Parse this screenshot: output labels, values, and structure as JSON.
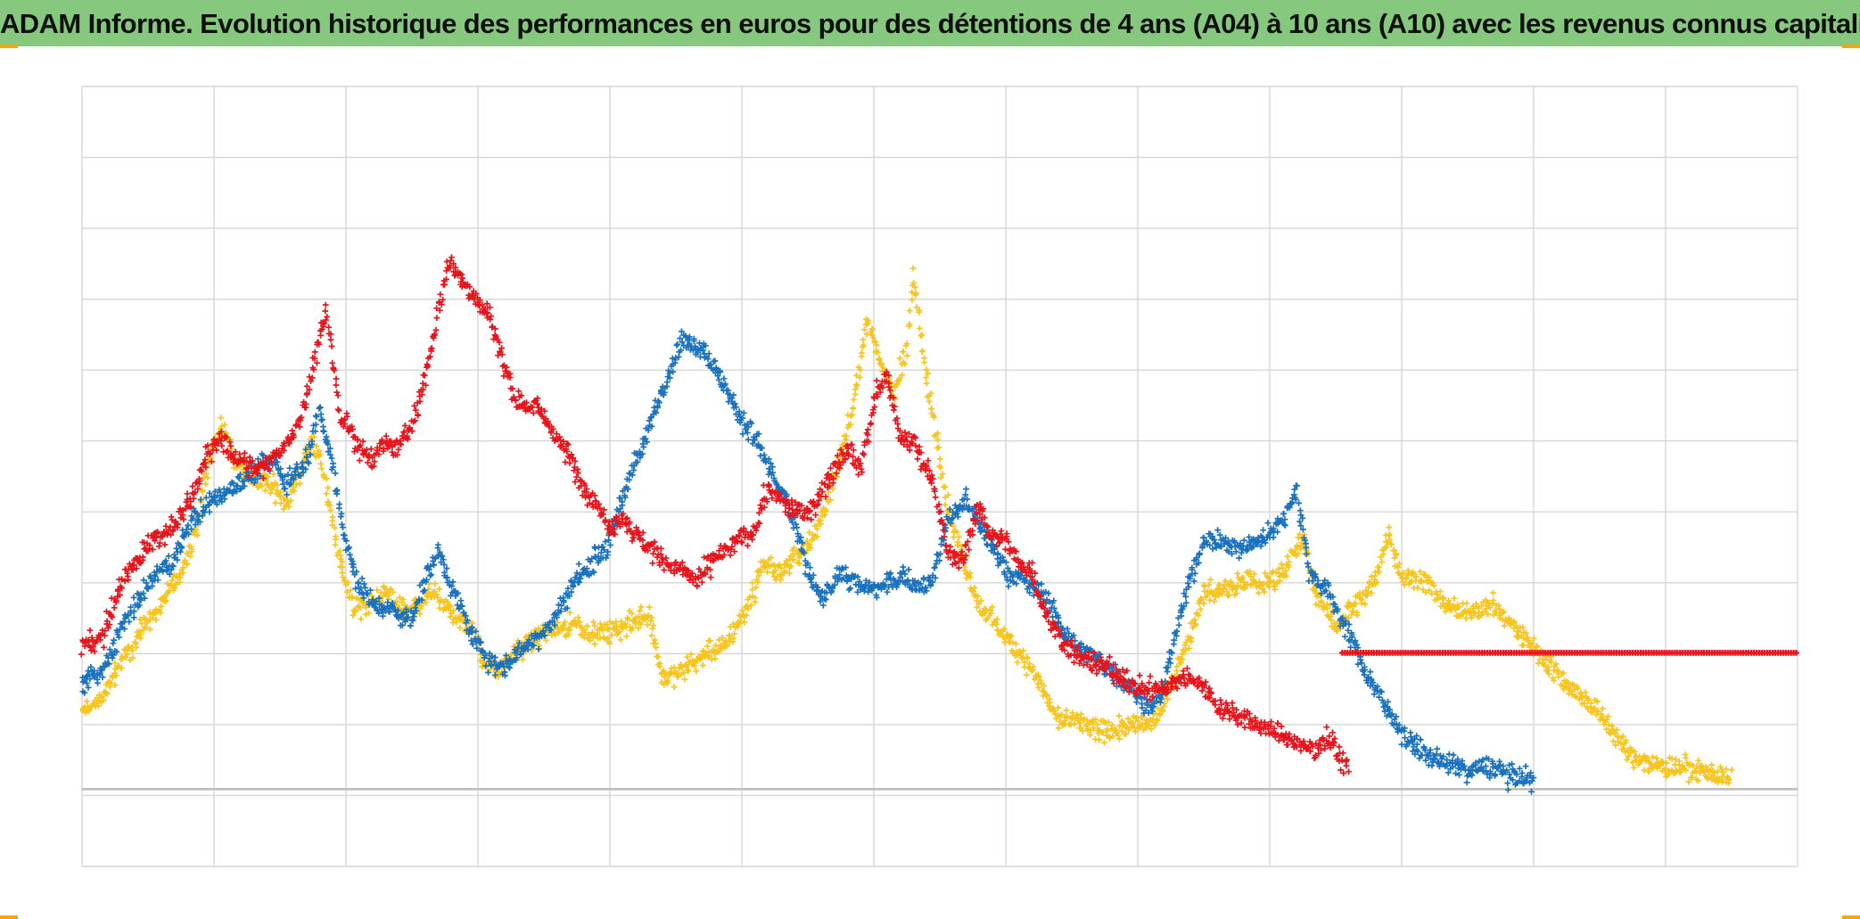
{
  "title": "ADAM Informe. Evolution historique des performances en euros pour des détentions de 4 ans (A04) à 10 ans (A10) avec les revenus connus capitalisés",
  "colors": {
    "title_bar": "#86c97e",
    "grid": "#d6d6d6",
    "red": "#e8141c",
    "blue": "#1a72be",
    "yellow": "#f7c51e"
  },
  "chart_data": {
    "type": "scatter",
    "marker": "plus",
    "grid": true,
    "x_divisions": 13,
    "y_divisions": 11,
    "xlim": [
      0,
      13
    ],
    "ylim": [
      -1.1,
      10
    ],
    "baseline_y": 0,
    "tick_labels": "none visible",
    "series": [
      {
        "color": "red",
        "points": [
          [
            0.0,
            2.05
          ],
          [
            0.15,
            2.15
          ],
          [
            0.3,
            2.95
          ],
          [
            0.5,
            3.5
          ],
          [
            0.7,
            3.75
          ],
          [
            0.85,
            4.2
          ],
          [
            0.95,
            4.8
          ],
          [
            1.05,
            5.0
          ],
          [
            1.2,
            4.65
          ],
          [
            1.35,
            4.55
          ],
          [
            1.5,
            4.8
          ],
          [
            1.65,
            5.2
          ],
          [
            1.75,
            6.0
          ],
          [
            1.85,
            6.8
          ],
          [
            1.95,
            5.4
          ],
          [
            2.1,
            4.85
          ],
          [
            2.2,
            4.7
          ],
          [
            2.3,
            4.95
          ],
          [
            2.4,
            4.85
          ],
          [
            2.5,
            5.2
          ],
          [
            2.6,
            5.8
          ],
          [
            2.7,
            6.8
          ],
          [
            2.78,
            7.5
          ],
          [
            2.9,
            7.2
          ],
          [
            3.0,
            6.9
          ],
          [
            3.1,
            6.7
          ],
          [
            3.2,
            6.0
          ],
          [
            3.3,
            5.5
          ],
          [
            3.45,
            5.45
          ],
          [
            3.6,
            5.0
          ],
          [
            3.7,
            4.7
          ],
          [
            3.8,
            4.3
          ],
          [
            3.9,
            4.1
          ],
          [
            4.0,
            3.7
          ],
          [
            4.1,
            3.9
          ],
          [
            4.2,
            3.6
          ],
          [
            4.4,
            3.25
          ],
          [
            4.55,
            3.1
          ],
          [
            4.65,
            2.95
          ],
          [
            4.8,
            3.3
          ],
          [
            4.95,
            3.5
          ],
          [
            5.1,
            3.7
          ],
          [
            5.2,
            4.3
          ],
          [
            5.35,
            4.0
          ],
          [
            5.5,
            3.9
          ],
          [
            5.65,
            4.4
          ],
          [
            5.8,
            4.9
          ],
          [
            5.9,
            4.55
          ],
          [
            6.0,
            5.5
          ],
          [
            6.1,
            5.9
          ],
          [
            6.2,
            4.95
          ],
          [
            6.3,
            4.95
          ],
          [
            6.45,
            4.4
          ],
          [
            6.55,
            3.4
          ],
          [
            6.65,
            3.2
          ],
          [
            6.8,
            4.0
          ],
          [
            6.9,
            3.6
          ],
          [
            7.0,
            3.55
          ],
          [
            7.1,
            3.2
          ],
          [
            7.2,
            3.1
          ],
          [
            7.3,
            2.5
          ],
          [
            7.45,
            2.05
          ],
          [
            7.6,
            1.85
          ],
          [
            7.8,
            1.7
          ],
          [
            7.95,
            1.5
          ],
          [
            8.1,
            1.4
          ],
          [
            8.2,
            1.45
          ],
          [
            8.3,
            1.55
          ],
          [
            8.45,
            1.6
          ],
          [
            8.6,
            1.2
          ],
          [
            8.8,
            1.0
          ],
          [
            9.0,
            0.85
          ],
          [
            9.15,
            0.7
          ],
          [
            9.3,
            0.55
          ],
          [
            9.45,
            0.75
          ],
          [
            9.55,
            0.4
          ],
          [
            9.6,
            0.3
          ]
        ],
        "flat": {
          "x_start": 9.55,
          "x_end": 13.0,
          "y": 1.94
        }
      },
      {
        "color": "blue",
        "points": [
          [
            0.0,
            1.5
          ],
          [
            0.15,
            1.65
          ],
          [
            0.3,
            2.3
          ],
          [
            0.5,
            2.9
          ],
          [
            0.7,
            3.3
          ],
          [
            0.85,
            3.9
          ],
          [
            1.0,
            4.1
          ],
          [
            1.15,
            4.3
          ],
          [
            1.3,
            4.5
          ],
          [
            1.45,
            4.7
          ],
          [
            1.55,
            4.35
          ],
          [
            1.7,
            4.7
          ],
          [
            1.8,
            5.4
          ],
          [
            1.9,
            4.6
          ],
          [
            2.0,
            3.5
          ],
          [
            2.1,
            2.9
          ],
          [
            2.2,
            2.65
          ],
          [
            2.35,
            2.55
          ],
          [
            2.5,
            2.4
          ],
          [
            2.6,
            3.0
          ],
          [
            2.7,
            3.4
          ],
          [
            2.8,
            2.9
          ],
          [
            2.95,
            2.2
          ],
          [
            3.1,
            1.8
          ],
          [
            3.2,
            1.75
          ],
          [
            3.3,
            1.95
          ],
          [
            3.45,
            2.15
          ],
          [
            3.6,
            2.5
          ],
          [
            3.75,
            3.0
          ],
          [
            3.9,
            3.3
          ],
          [
            4.0,
            3.5
          ],
          [
            4.1,
            4.2
          ],
          [
            4.25,
            4.9
          ],
          [
            4.4,
            5.7
          ],
          [
            4.55,
            6.4
          ],
          [
            4.7,
            6.3
          ],
          [
            4.85,
            5.8
          ],
          [
            4.95,
            5.4
          ],
          [
            5.1,
            5.0
          ],
          [
            5.25,
            4.4
          ],
          [
            5.4,
            3.8
          ],
          [
            5.5,
            3.1
          ],
          [
            5.6,
            2.7
          ],
          [
            5.75,
            3.1
          ],
          [
            5.9,
            2.9
          ],
          [
            6.05,
            2.85
          ],
          [
            6.2,
            3.0
          ],
          [
            6.35,
            2.9
          ],
          [
            6.45,
            2.95
          ],
          [
            6.55,
            3.8
          ],
          [
            6.7,
            4.1
          ],
          [
            6.85,
            3.6
          ],
          [
            7.0,
            3.1
          ],
          [
            7.15,
            2.95
          ],
          [
            7.3,
            2.75
          ],
          [
            7.45,
            2.2
          ],
          [
            7.6,
            1.95
          ],
          [
            7.8,
            1.7
          ],
          [
            7.95,
            1.45
          ],
          [
            8.1,
            1.15
          ],
          [
            8.2,
            1.4
          ],
          [
            8.3,
            2.3
          ],
          [
            8.4,
            3.0
          ],
          [
            8.5,
            3.55
          ],
          [
            8.65,
            3.5
          ],
          [
            8.8,
            3.4
          ],
          [
            8.95,
            3.6
          ],
          [
            9.1,
            3.8
          ],
          [
            9.2,
            4.3
          ],
          [
            9.3,
            3.1
          ],
          [
            9.45,
            2.8
          ],
          [
            9.6,
            2.2
          ],
          [
            9.75,
            1.6
          ],
          [
            9.9,
            1.1
          ],
          [
            10.05,
            0.7
          ],
          [
            10.2,
            0.45
          ],
          [
            10.4,
            0.35
          ],
          [
            10.5,
            0.25
          ],
          [
            10.6,
            0.3
          ],
          [
            10.72,
            0.3
          ],
          [
            10.8,
            0.2
          ],
          [
            11.0,
            0.12
          ]
        ]
      },
      {
        "color": "yellow",
        "points": [
          [
            0.0,
            1.1
          ],
          [
            0.15,
            1.3
          ],
          [
            0.3,
            1.8
          ],
          [
            0.5,
            2.4
          ],
          [
            0.7,
            2.9
          ],
          [
            0.85,
            3.5
          ],
          [
            0.95,
            4.6
          ],
          [
            1.05,
            5.2
          ],
          [
            1.15,
            4.7
          ],
          [
            1.3,
            4.4
          ],
          [
            1.45,
            4.3
          ],
          [
            1.55,
            4.1
          ],
          [
            1.65,
            4.5
          ],
          [
            1.75,
            5.0
          ],
          [
            1.85,
            4.3
          ],
          [
            1.95,
            3.3
          ],
          [
            2.05,
            2.6
          ],
          [
            2.15,
            2.6
          ],
          [
            2.3,
            2.8
          ],
          [
            2.45,
            2.5
          ],
          [
            2.55,
            2.6
          ],
          [
            2.65,
            2.8
          ],
          [
            2.8,
            2.5
          ],
          [
            2.95,
            2.3
          ],
          [
            3.05,
            1.8
          ],
          [
            3.15,
            1.7
          ],
          [
            3.3,
            2.0
          ],
          [
            3.45,
            2.15
          ],
          [
            3.6,
            2.3
          ],
          [
            3.75,
            2.35
          ],
          [
            3.9,
            2.2
          ],
          [
            4.05,
            2.25
          ],
          [
            4.2,
            2.4
          ],
          [
            4.3,
            2.5
          ],
          [
            4.4,
            1.55
          ],
          [
            4.55,
            1.7
          ],
          [
            4.7,
            1.9
          ],
          [
            4.85,
            2.0
          ],
          [
            4.95,
            2.3
          ],
          [
            5.05,
            2.6
          ],
          [
            5.15,
            3.2
          ],
          [
            5.3,
            3.1
          ],
          [
            5.4,
            3.3
          ],
          [
            5.55,
            3.6
          ],
          [
            5.7,
            4.4
          ],
          [
            5.85,
            5.5
          ],
          [
            5.95,
            6.7
          ],
          [
            6.05,
            6.1
          ],
          [
            6.15,
            5.6
          ],
          [
            6.25,
            6.3
          ],
          [
            6.3,
            7.3
          ],
          [
            6.4,
            5.8
          ],
          [
            6.5,
            4.8
          ],
          [
            6.55,
            4.1
          ],
          [
            6.65,
            3.4
          ],
          [
            6.8,
            2.6
          ],
          [
            6.95,
            2.3
          ],
          [
            7.1,
            1.95
          ],
          [
            7.25,
            1.55
          ],
          [
            7.4,
            0.95
          ],
          [
            7.5,
            1.0
          ],
          [
            7.7,
            0.8
          ],
          [
            7.95,
            0.9
          ],
          [
            8.1,
            0.95
          ],
          [
            8.2,
            1.25
          ],
          [
            8.3,
            1.75
          ],
          [
            8.4,
            2.2
          ],
          [
            8.5,
            2.8
          ],
          [
            8.6,
            2.8
          ],
          [
            8.7,
            2.9
          ],
          [
            8.8,
            3.0
          ],
          [
            8.95,
            2.9
          ],
          [
            9.1,
            3.1
          ],
          [
            9.25,
            3.55
          ],
          [
            9.35,
            2.8
          ],
          [
            9.5,
            2.3
          ],
          [
            9.6,
            2.55
          ],
          [
            9.7,
            2.7
          ],
          [
            9.8,
            3.0
          ],
          [
            9.9,
            3.65
          ],
          [
            10.0,
            3.0
          ],
          [
            10.15,
            3.0
          ],
          [
            10.3,
            2.7
          ],
          [
            10.45,
            2.5
          ],
          [
            10.6,
            2.6
          ],
          [
            10.7,
            2.6
          ],
          [
            10.85,
            2.3
          ],
          [
            11.0,
            2.0
          ],
          [
            11.15,
            1.7
          ],
          [
            11.3,
            1.4
          ],
          [
            11.45,
            1.2
          ],
          [
            11.6,
            0.8
          ],
          [
            11.75,
            0.45
          ],
          [
            11.9,
            0.35
          ],
          [
            12.05,
            0.28
          ],
          [
            12.2,
            0.3
          ],
          [
            12.3,
            0.25
          ],
          [
            12.4,
            0.2
          ],
          [
            12.5,
            0.1
          ]
        ]
      }
    ]
  }
}
